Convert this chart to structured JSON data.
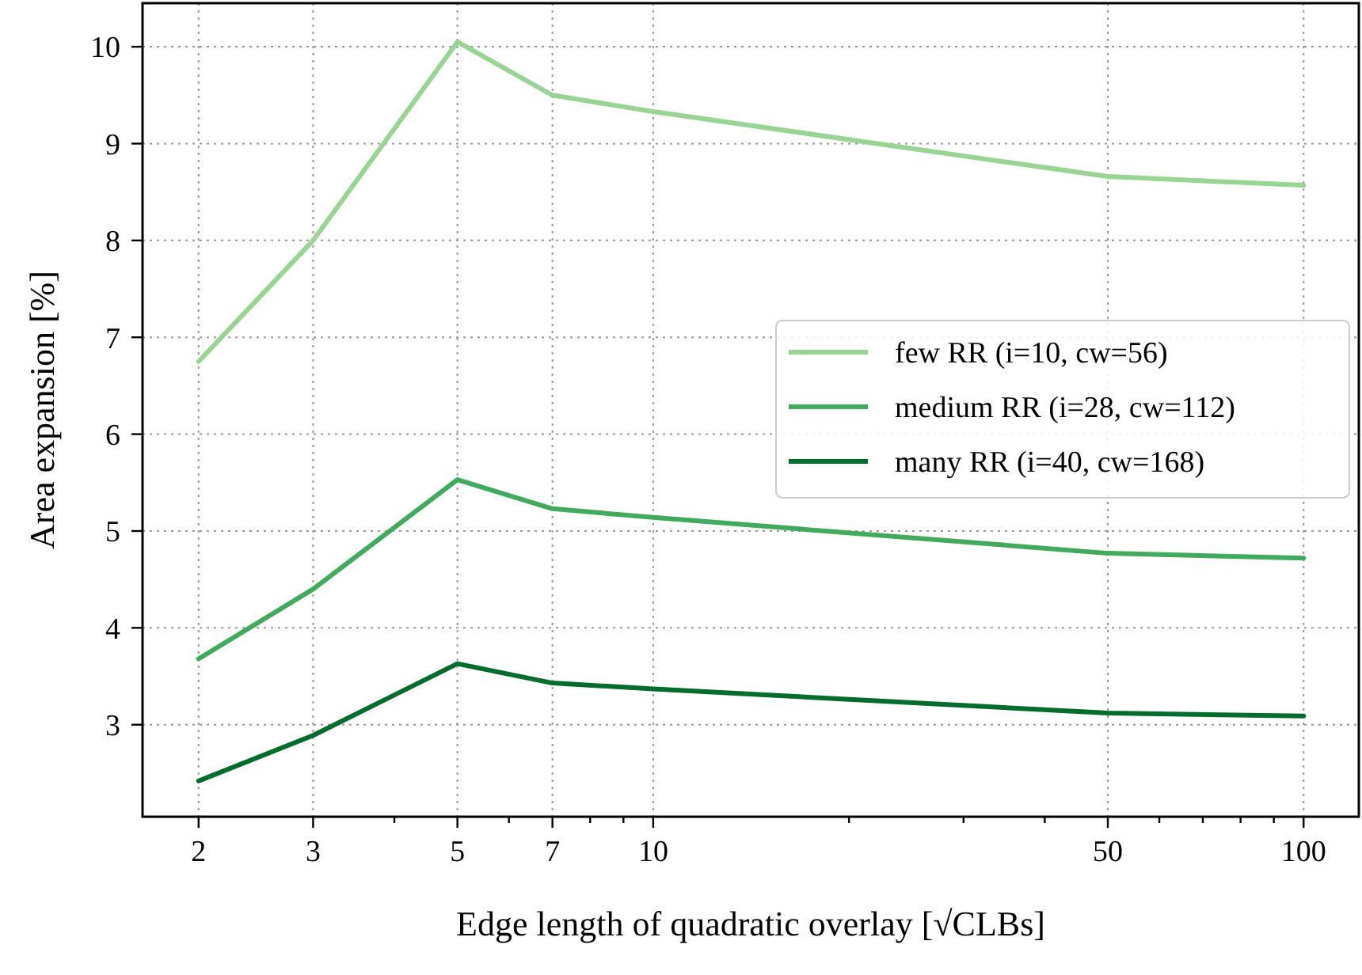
{
  "chart_data": {
    "type": "line",
    "xlabel": "Edge length of quadratic overlay [√CLBs]",
    "ylabel": "Area expansion [%]",
    "x": [
      2,
      3,
      5,
      7,
      10,
      50,
      100
    ],
    "series": [
      {
        "name": "few RR (i=10, cw=56)",
        "color": "#98d594",
        "values": [
          6.75,
          8.0,
          10.05,
          9.5,
          9.33,
          8.66,
          8.57
        ]
      },
      {
        "name": "medium RR (i=28, cw=112)",
        "color": "#41ab5d",
        "values": [
          3.68,
          4.4,
          5.53,
          5.23,
          5.14,
          4.77,
          4.72
        ]
      },
      {
        "name": "many RR (i=40, cw=168)",
        "color": "#006d2c",
        "values": [
          2.42,
          2.89,
          3.63,
          3.43,
          3.37,
          3.12,
          3.09
        ]
      }
    ],
    "log": "x",
    "xlim": [
      1.64,
      121.6
    ],
    "ylim": [
      2.05,
      10.45
    ],
    "xticks": [
      2,
      3,
      {
        "value": 4,
        "label": null
      },
      5,
      {
        "value": 6,
        "label": null
      },
      7,
      {
        "value": 8,
        "label": null
      },
      {
        "value": 9,
        "label": null
      },
      10,
      {
        "value": 20,
        "label": null
      },
      {
        "value": 30,
        "label": null
      },
      {
        "value": 40,
        "label": null
      },
      50,
      {
        "value": 60,
        "label": null
      },
      {
        "value": 70,
        "label": null
      },
      {
        "value": 80,
        "label": null
      },
      {
        "value": 90,
        "label": null
      },
      100
    ],
    "yticks": [
      3,
      4,
      5,
      6,
      7,
      8,
      9,
      10
    ],
    "grid": true,
    "legend": "right",
    "marker": "none",
    "line_style": "solid"
  }
}
